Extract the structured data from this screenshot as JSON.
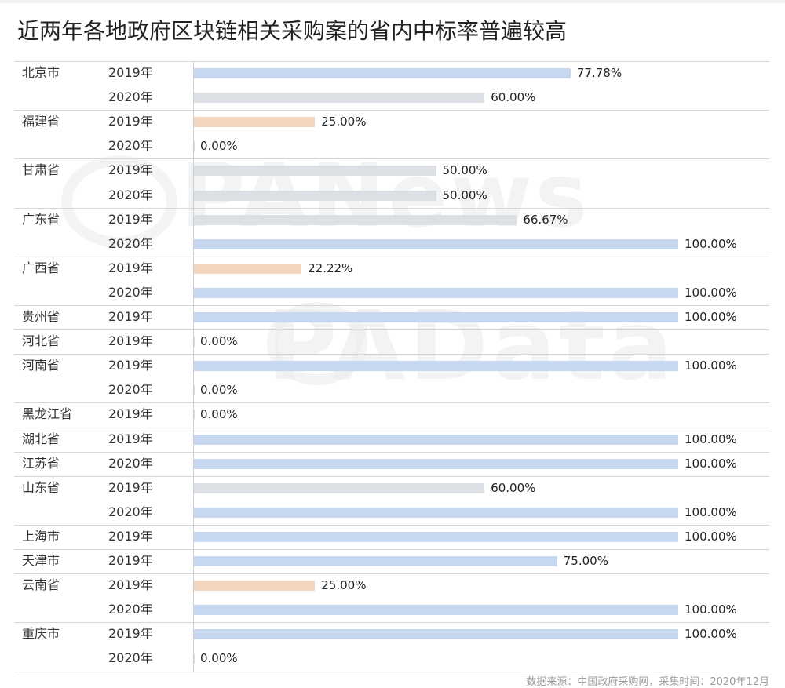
{
  "chart_data": {
    "type": "bar",
    "orientation": "horizontal",
    "title": "近两年各地政府区块链相关采购案的省内中标率普遍较高",
    "value_unit": "%",
    "xlim": [
      0,
      100
    ],
    "grid": false,
    "legend": "none",
    "colors": {
      "blue": "#c6d7ef",
      "gray": "#dcdfe3",
      "orange": "#f3d6bf"
    },
    "groups": [
      {
        "province": "北京市",
        "rows": [
          {
            "year": "2019年",
            "value": 77.78,
            "label": "77.78%",
            "color": "blue"
          },
          {
            "year": "2020年",
            "value": 60.0,
            "label": "60.00%",
            "color": "gray"
          }
        ]
      },
      {
        "province": "福建省",
        "rows": [
          {
            "year": "2019年",
            "value": 25.0,
            "label": "25.00%",
            "color": "orange"
          },
          {
            "year": "2020年",
            "value": 0.0,
            "label": "0.00%",
            "color": "orange"
          }
        ]
      },
      {
        "province": "甘肃省",
        "rows": [
          {
            "year": "2019年",
            "value": 50.0,
            "label": "50.00%",
            "color": "gray"
          },
          {
            "year": "2020年",
            "value": 50.0,
            "label": "50.00%",
            "color": "gray"
          }
        ]
      },
      {
        "province": "广东省",
        "rows": [
          {
            "year": "2019年",
            "value": 66.67,
            "label": "66.67%",
            "color": "gray"
          },
          {
            "year": "2020年",
            "value": 100.0,
            "label": "100.00%",
            "color": "blue"
          }
        ]
      },
      {
        "province": "广西省",
        "rows": [
          {
            "year": "2019年",
            "value": 22.22,
            "label": "22.22%",
            "color": "orange"
          },
          {
            "year": "2020年",
            "value": 100.0,
            "label": "100.00%",
            "color": "blue"
          }
        ]
      },
      {
        "province": "贵州省",
        "rows": [
          {
            "year": "2019年",
            "value": 100.0,
            "label": "100.00%",
            "color": "blue"
          }
        ]
      },
      {
        "province": "河北省",
        "rows": [
          {
            "year": "2019年",
            "value": 0.0,
            "label": "0.00%",
            "color": "orange"
          }
        ]
      },
      {
        "province": "河南省",
        "rows": [
          {
            "year": "2019年",
            "value": 100.0,
            "label": "100.00%",
            "color": "blue"
          },
          {
            "year": "2020年",
            "value": 0.0,
            "label": "0.00%",
            "color": "orange"
          }
        ]
      },
      {
        "province": "黑龙江省",
        "rows": [
          {
            "year": "2019年",
            "value": 0.0,
            "label": "0.00%",
            "color": "orange"
          }
        ]
      },
      {
        "province": "湖北省",
        "rows": [
          {
            "year": "2019年",
            "value": 100.0,
            "label": "100.00%",
            "color": "blue"
          }
        ]
      },
      {
        "province": "江苏省",
        "rows": [
          {
            "year": "2020年",
            "value": 100.0,
            "label": "100.00%",
            "color": "blue"
          }
        ]
      },
      {
        "province": "山东省",
        "rows": [
          {
            "year": "2019年",
            "value": 60.0,
            "label": "60.00%",
            "color": "gray"
          },
          {
            "year": "2020年",
            "value": 100.0,
            "label": "100.00%",
            "color": "blue"
          }
        ]
      },
      {
        "province": "上海市",
        "rows": [
          {
            "year": "2019年",
            "value": 100.0,
            "label": "100.00%",
            "color": "blue"
          }
        ]
      },
      {
        "province": "天津市",
        "rows": [
          {
            "year": "2019年",
            "value": 75.0,
            "label": "75.00%",
            "color": "blue"
          }
        ]
      },
      {
        "province": "云南省",
        "rows": [
          {
            "year": "2019年",
            "value": 25.0,
            "label": "25.00%",
            "color": "orange"
          },
          {
            "year": "2020年",
            "value": 100.0,
            "label": "100.00%",
            "color": "blue"
          }
        ]
      },
      {
        "province": "重庆市",
        "rows": [
          {
            "year": "2019年",
            "value": 100.0,
            "label": "100.00%",
            "color": "blue"
          },
          {
            "year": "2020年",
            "value": 0.0,
            "label": "0.00%",
            "color": "orange"
          }
        ]
      }
    ]
  },
  "watermarks": [
    "PANews",
    "PAData"
  ],
  "source_text": "数据来源：中国政府采购网，采集时间：2020年12月"
}
